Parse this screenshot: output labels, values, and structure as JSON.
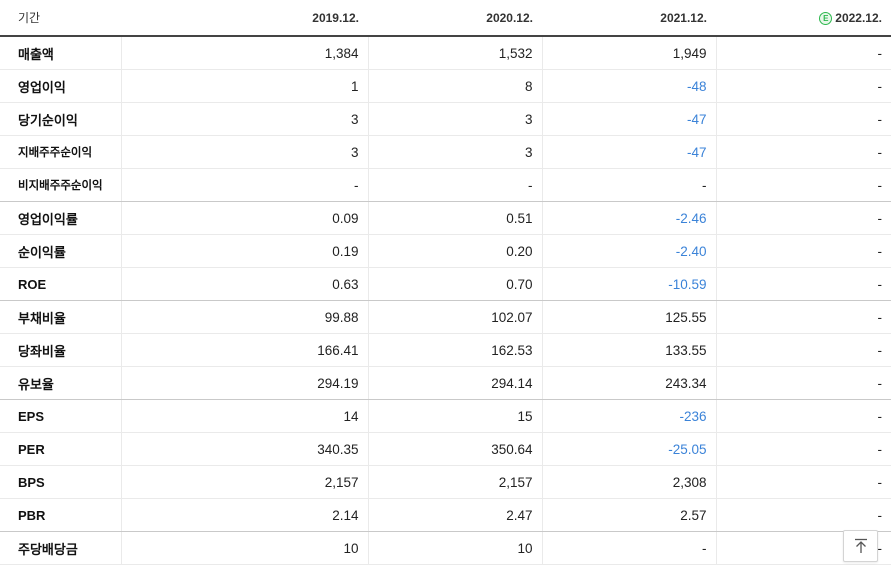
{
  "header": {
    "label": "기간",
    "periods": [
      "2019.12.",
      "2020.12.",
      "2021.12.",
      "2022.12."
    ],
    "estimate_badge": "E"
  },
  "rows": [
    {
      "label": "매출액",
      "values": [
        "1,384",
        "1,532",
        "1,949",
        "-"
      ]
    },
    {
      "label": "영업이익",
      "values": [
        "1",
        "8",
        "-48",
        "-"
      ]
    },
    {
      "label": "당기순이익",
      "values": [
        "3",
        "3",
        "-47",
        "-"
      ]
    },
    {
      "label": "지배주주순이익",
      "values": [
        "3",
        "3",
        "-47",
        "-"
      ]
    },
    {
      "label": "비지배주주순이익",
      "values": [
        "-",
        "-",
        "-",
        "-"
      ]
    },
    {
      "label": "영업이익률",
      "values": [
        "0.09",
        "0.51",
        "-2.46",
        "-"
      ]
    },
    {
      "label": "순이익률",
      "values": [
        "0.19",
        "0.20",
        "-2.40",
        "-"
      ]
    },
    {
      "label": "ROE",
      "values": [
        "0.63",
        "0.70",
        "-10.59",
        "-"
      ]
    },
    {
      "label": "부채비율",
      "values": [
        "99.88",
        "102.07",
        "125.55",
        "-"
      ]
    },
    {
      "label": "당좌비율",
      "values": [
        "166.41",
        "162.53",
        "133.55",
        "-"
      ]
    },
    {
      "label": "유보율",
      "values": [
        "294.19",
        "294.14",
        "243.34",
        "-"
      ]
    },
    {
      "label": "EPS",
      "values": [
        "14",
        "15",
        "-236",
        "-"
      ]
    },
    {
      "label": "PER",
      "values": [
        "340.35",
        "350.64",
        "-25.05",
        "-"
      ]
    },
    {
      "label": "BPS",
      "values": [
        "2,157",
        "2,157",
        "2,308",
        "-"
      ]
    },
    {
      "label": "PBR",
      "values": [
        "2.14",
        "2.47",
        "2.57",
        "-"
      ]
    },
    {
      "label": "주당배당금",
      "values": [
        "10",
        "10",
        "-",
        "-"
      ]
    }
  ],
  "colors": {
    "negative": "#3b83d8",
    "estimate": "#2db84e"
  },
  "scroll_top_icon": "arrow-up-to-top-icon"
}
